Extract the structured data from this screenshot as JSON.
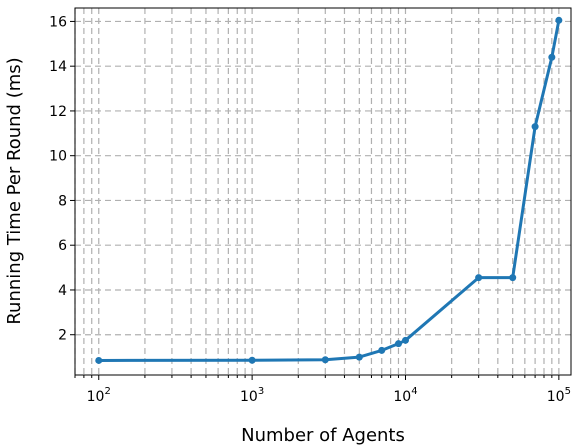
{
  "chart_data": {
    "type": "line",
    "title": "",
    "xlabel": "Number of Agents",
    "ylabel": "Running Time Per Round (ms)",
    "xscale": "log",
    "xlim": [
      70,
      120000
    ],
    "ylim": [
      0.2,
      16.6
    ],
    "grid": true,
    "legend": "none",
    "color": "#1f77b4",
    "x_ticks": [
      {
        "value": 100,
        "base": "10",
        "exp": "2"
      },
      {
        "value": 1000,
        "base": "10",
        "exp": "3"
      },
      {
        "value": 10000,
        "base": "10",
        "exp": "4"
      },
      {
        "value": 100000,
        "base": "10",
        "exp": "5"
      }
    ],
    "y_ticks": [
      {
        "value": 2,
        "label": "2"
      },
      {
        "value": 4,
        "label": "4"
      },
      {
        "value": 6,
        "label": "6"
      },
      {
        "value": 8,
        "label": "8"
      },
      {
        "value": 10,
        "label": "10"
      },
      {
        "value": 12,
        "label": "12"
      },
      {
        "value": 14,
        "label": "14"
      },
      {
        "value": 16,
        "label": "16"
      }
    ],
    "series": [
      {
        "x": [
          100,
          1000,
          3000,
          5000,
          7000,
          9000,
          10000,
          30000,
          50000,
          70000,
          90000,
          100000
        ],
        "y": [
          0.85,
          0.86,
          0.88,
          1.0,
          1.3,
          1.6,
          1.75,
          4.55,
          4.55,
          11.3,
          14.4,
          16.05
        ]
      }
    ]
  }
}
